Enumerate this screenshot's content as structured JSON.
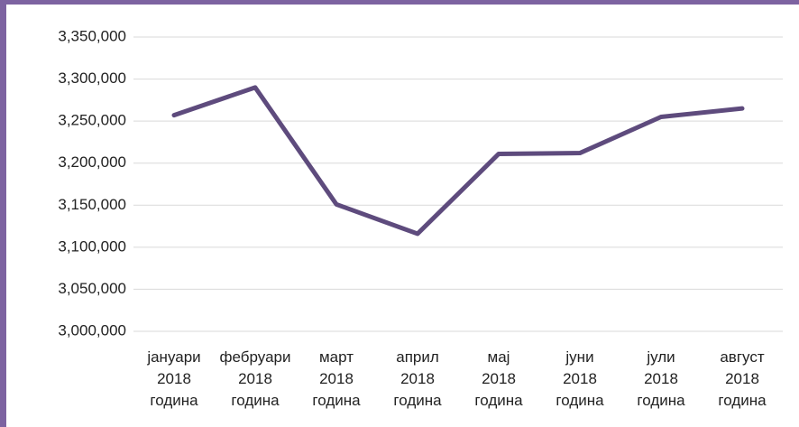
{
  "chart_data": {
    "type": "line",
    "categories": [
      "јануари\n2018\nгодина",
      "фебруари\n2018\nгодина",
      "март\n2018\nгодина",
      "април\n2018\nгодина",
      "мај\n2018\nгодина",
      "јуни\n2018\nгодина",
      "јули\n2018\nгодина",
      "август\n2018\nгодина"
    ],
    "series": [
      {
        "color": "#5e4b7d",
        "values": [
          3257000,
          3290000,
          3151000,
          3116000,
          3211000,
          3212000,
          3255000,
          3265000
        ]
      }
    ],
    "ylim": [
      3000000,
      3350000
    ],
    "yticks": [
      {
        "value": 3000000,
        "label": "3,000,000"
      },
      {
        "value": 3050000,
        "label": "3,050,000"
      },
      {
        "value": 3100000,
        "label": "3,100,000"
      },
      {
        "value": 3150000,
        "label": "3,150,000"
      },
      {
        "value": 3200000,
        "label": "3,200,000"
      },
      {
        "value": 3250000,
        "label": "3,250,000"
      },
      {
        "value": 3300000,
        "label": "3,300,000"
      },
      {
        "value": 3350000,
        "label": "3,350,000"
      }
    ],
    "grid": true
  }
}
